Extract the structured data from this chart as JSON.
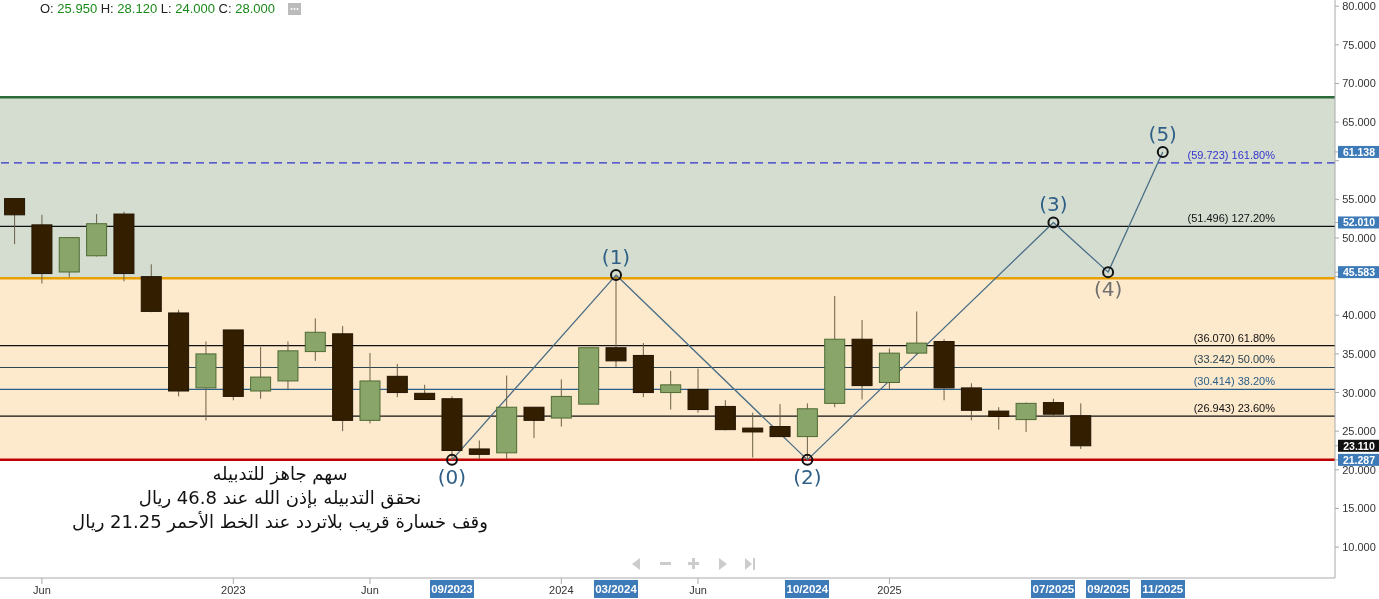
{
  "chart_data": {
    "type": "candlestick",
    "subtitle": "O: 25.950 H: 28.120 L: 24.000 C: 28.000",
    "x": [
      "2022-05",
      "2022-06",
      "2022-07",
      "2022-08",
      "2022-09",
      "2022-10",
      "2022-11",
      "2022-12",
      "2023-01",
      "2023-02",
      "2023-03",
      "2023-04",
      "2023-05",
      "2023-06",
      "2023-07",
      "2023-08",
      "2023-09",
      "2023-10",
      "2023-11",
      "2023-12",
      "2024-01",
      "2024-02",
      "2024-03",
      "2024-04",
      "2024-05",
      "2024-06",
      "2024-07",
      "2024-08",
      "2024-09",
      "2024-10",
      "2024-11",
      "2024-12",
      "2025-01",
      "2025-02",
      "2025-03",
      "2025-04",
      "2025-05",
      "2025-06",
      "2025-07",
      "2025-08"
    ],
    "ohlc": [
      [
        55.1,
        55.1,
        49.2,
        53.0
      ],
      [
        51.7,
        53.0,
        44.1,
        45.4
      ],
      [
        45.6,
        50.1,
        44.9,
        50.05
      ],
      [
        47.7,
        53.1,
        47.6,
        51.85
      ],
      [
        53.1,
        53.4,
        44.4,
        45.4
      ],
      [
        45.0,
        46.6,
        40.4,
        40.5
      ],
      [
        40.3,
        40.7,
        29.5,
        30.2
      ],
      [
        30.6,
        36.6,
        26.4,
        35.0
      ],
      [
        38.1,
        38.1,
        29.0,
        29.5
      ],
      [
        30.2,
        35.9,
        29.2,
        32.0
      ],
      [
        31.5,
        36.6,
        30.3,
        35.4
      ],
      [
        35.3,
        39.6,
        34.1,
        37.8
      ],
      [
        37.6,
        38.6,
        25.0,
        26.4
      ],
      [
        26.4,
        35.1,
        26.0,
        31.5
      ],
      [
        32.1,
        33.7,
        29.4,
        30.0
      ],
      [
        29.9,
        31.0,
        29.1,
        29.1
      ],
      [
        29.2,
        29.5,
        21.287,
        22.5
      ],
      [
        22.7,
        23.8,
        21.4,
        22.0
      ],
      [
        22.2,
        32.2,
        21.4,
        28.1
      ],
      [
        28.1,
        28.1,
        24.1,
        26.4
      ],
      [
        26.7,
        31.7,
        25.6,
        29.5
      ],
      [
        28.5,
        35.8,
        28.5,
        35.8
      ],
      [
        35.8,
        45.2,
        33.3,
        34.1
      ],
      [
        34.8,
        36.4,
        29.4,
        30.0
      ],
      [
        30.0,
        32.8,
        27.8,
        31.0
      ],
      [
        30.4,
        33.1,
        27.4,
        27.8
      ],
      [
        28.2,
        29.0,
        25.1,
        25.2
      ],
      [
        25.4,
        27.4,
        21.6,
        24.9
      ],
      [
        25.6,
        28.5,
        24.3,
        24.3
      ],
      [
        24.3,
        28.6,
        21.287,
        27.9
      ],
      [
        28.6,
        42.5,
        28.1,
        36.9
      ],
      [
        36.9,
        39.4,
        29.1,
        30.9
      ],
      [
        31.3,
        35.7,
        30.4,
        35.1
      ],
      [
        35.1,
        40.5,
        34.9,
        36.4
      ],
      [
        36.6,
        36.9,
        29.0,
        30.6
      ],
      [
        30.6,
        31.2,
        26.4,
        27.7
      ],
      [
        27.6,
        28.1,
        25.2,
        26.9
      ],
      [
        26.5,
        28.7,
        24.9,
        28.6
      ],
      [
        28.7,
        29.2,
        26.8,
        27.2
      ],
      [
        27.0,
        28.6,
        22.7,
        23.11
      ]
    ],
    "colors": [
      "#331f00",
      "#331f00",
      "#8aa56a",
      "#8aa56a",
      "#331f00",
      "#331f00",
      "#331f00",
      "#8aa56a",
      "#331f00",
      "#8aa56a",
      "#8aa56a",
      "#8aa56a",
      "#331f00",
      "#8aa56a",
      "#331f00",
      "#331f00",
      "#331f00",
      "#331f00",
      "#8aa56a",
      "#331f00",
      "#8aa56a",
      "#8aa56a",
      "#331f00",
      "#331f00",
      "#8aa56a",
      "#331f00",
      "#331f00",
      "#331f00",
      "#331f00",
      "#8aa56a",
      "#8aa56a",
      "#331f00",
      "#8aa56a",
      "#8aa56a",
      "#331f00",
      "#331f00",
      "#331f00",
      "#8aa56a",
      "#331f00",
      "#331f00"
    ],
    "series": [
      {
        "type": "line",
        "color": "#4a6e86",
        "marker": "circle",
        "x": [
          "2023-09",
          "2024-03",
          "2024-10",
          "2025-07",
          "2025-09",
          "2025-11"
        ],
        "values": [
          21.287,
          45.2,
          21.287,
          52.01,
          45.583,
          61.138
        ]
      }
    ],
    "xlim": [
      "2022-04-15",
      "2026-05-10"
    ],
    "xticks": [
      {
        "value": "2022-06",
        "label": "Jun"
      },
      {
        "value": "2023-01",
        "label": "2023"
      },
      {
        "value": "2023-06",
        "label": "Jun"
      },
      {
        "value": "2024-01",
        "label": "2024"
      },
      {
        "value": "2024-06",
        "label": "Jun"
      },
      {
        "value": "2025-01",
        "label": "2025"
      }
    ],
    "ylim": [
      6,
      80.8
    ],
    "yticks": [
      {
        "value": 10,
        "label": "10.000"
      },
      {
        "value": 15,
        "label": "15.000"
      },
      {
        "value": 20,
        "label": "20.000"
      },
      {
        "value": 25,
        "label": "25.000"
      },
      {
        "value": 30,
        "label": "30.000"
      },
      {
        "value": 35,
        "label": "35.000"
      },
      {
        "value": 40,
        "label": "40.000"
      },
      {
        "value": 45,
        "label": null
      },
      {
        "value": 21.287,
        "label": "21.287"
      },
      {
        "value": 23.11,
        "label": "23.110"
      },
      {
        "value": 45.583,
        "label": "45.583"
      },
      {
        "value": 52.01,
        "label": "52.010"
      },
      {
        "value": 61.138,
        "label": "61.138"
      },
      {
        "value": 50,
        "label": "50.000"
      },
      {
        "value": 55,
        "label": "55.000"
      },
      {
        "value": 60,
        "label": null
      },
      {
        "value": 65,
        "label": "65.000"
      },
      {
        "value": 70,
        "label": "70.000"
      },
      {
        "value": 75,
        "label": "75.000"
      },
      {
        "value": 80,
        "label": "80.000"
      }
    ],
    "bands": [
      {
        "axis": "y",
        "from": 21.287,
        "to": 44.8,
        "color": "#fde9cc"
      },
      {
        "axis": "y",
        "from": 44.8,
        "to": 68.2,
        "color": "#d5ddd1"
      }
    ],
    "ref_lines": [
      {
        "axis": "y",
        "value": 59.723,
        "label": "(59.723) 161.80%",
        "color": "#3333cc",
        "line_style": "dashed"
      },
      {
        "axis": "y",
        "value": 51.496,
        "label": "(51.496) 127.20%",
        "color": "#111111"
      },
      {
        "axis": "y",
        "value": 36.07,
        "label": "(36.070) 61.80%",
        "color": "#111111"
      },
      {
        "axis": "y",
        "value": 33.242,
        "label": "(33.242) 50.00%",
        "color": "#2a4452"
      },
      {
        "axis": "y",
        "value": 30.414,
        "label": "(30.414) 38.20%",
        "color": "#2a5f8a"
      },
      {
        "axis": "y",
        "value": 26.943,
        "label": "(26.943) 23.60%",
        "color": "#111111"
      },
      {
        "axis": "y",
        "value": 21.287,
        "color": "#c00000"
      },
      {
        "axis": "y",
        "value": 44.8,
        "color": "#e8a000"
      },
      {
        "axis": "y",
        "value": 68.2,
        "color": "#2e6b3a"
      }
    ],
    "annotations": [
      {
        "text": "(0)",
        "x": "2023-09",
        "y": 21.287
      },
      {
        "text": "(1)",
        "x": "2024-03",
        "y": 45.2
      },
      {
        "text": "(2)",
        "x": "2024-10",
        "y": 21.287
      },
      {
        "text": "(3)",
        "x": "2025-07",
        "y": 52.01
      },
      {
        "text": "(4)",
        "x": "2025-09",
        "y": 45.583
      },
      {
        "text": "(5)",
        "x": "2025-11",
        "y": 61.138
      },
      {
        "text": "09/2023",
        "x": "2023-09"
      },
      {
        "text": "03/2024",
        "x": "2024-03"
      },
      {
        "text": "10/2024",
        "x": "2024-10"
      },
      {
        "text": "07/2025",
        "x": "2025-07"
      },
      {
        "text": "09/2025",
        "x": "2025-09"
      },
      {
        "text": "11/2025",
        "x": "2025-11"
      },
      "سهم جاهز للتدبيله",
      "نحقق التدبيله بإذن الله عند 46.8 ريال",
      "وقف خسارة قريب بلاتردد عند الخط الأحمر 21.25 ريال"
    ]
  }
}
